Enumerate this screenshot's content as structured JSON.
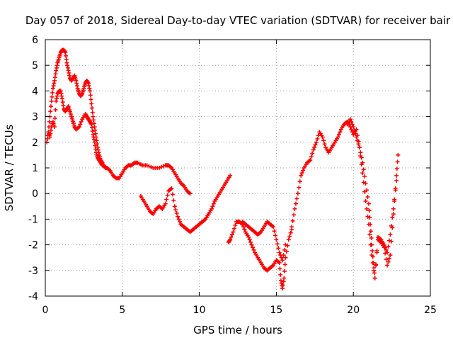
{
  "chart_data": {
    "type": "scatter",
    "title": "Day 057 of 2018, Sidereal Day-to-day VTEC variation (SDTVAR) for receiver bair",
    "xlabel": "GPS time / hours",
    "ylabel": "SDTVAR / TECUs",
    "xlim": [
      0,
      25
    ],
    "ylim": [
      -4,
      6
    ],
    "xticks": [
      0,
      5,
      10,
      15,
      20,
      25
    ],
    "yticks": [
      -4,
      -3,
      -2,
      -1,
      0,
      1,
      2,
      3,
      4,
      5,
      6
    ],
    "grid": true,
    "marker": "+",
    "color": "#ff0000",
    "series": [
      {
        "name": "series-1",
        "x": [
          0.2,
          0.3,
          0.4,
          0.5,
          0.6,
          0.7,
          0.8,
          0.9,
          1.0,
          1.1,
          1.2,
          1.3,
          1.4,
          1.5,
          1.6,
          1.7,
          1.8,
          1.9,
          2.0,
          2.2,
          2.4,
          2.6,
          2.7,
          2.8,
          2.9,
          3.0,
          3.1,
          3.2,
          3.3,
          3.4,
          3.5,
          3.6,
          3.7,
          3.8,
          3.9,
          4.0,
          4.2,
          4.4,
          4.6,
          4.8,
          5.0,
          5.2,
          5.4,
          5.6,
          5.8,
          6.0,
          6.3,
          6.6,
          7.0,
          7.4,
          7.8,
          8.0,
          8.2,
          8.4,
          8.6,
          8.8,
          9.0,
          9.2,
          9.4
        ],
        "y": [
          2.4,
          2.2,
          2.6,
          2.8,
          2.6,
          3.6,
          3.9,
          4.0,
          4.0,
          3.7,
          3.3,
          3.2,
          3.3,
          3.4,
          3.2,
          3.0,
          2.8,
          2.6,
          2.5,
          2.6,
          2.9,
          3.1,
          3.0,
          2.9,
          2.8,
          2.7,
          2.3,
          2.0,
          1.6,
          1.4,
          1.3,
          1.2,
          1.1,
          1.1,
          1.0,
          1.0,
          0.9,
          0.7,
          0.6,
          0.6,
          0.8,
          1.0,
          1.1,
          1.1,
          1.2,
          1.2,
          1.1,
          1.1,
          1.0,
          1.0,
          1.1,
          1.1,
          1.0,
          0.8,
          0.6,
          0.4,
          0.3,
          0.1,
          0.0
        ]
      },
      {
        "name": "series-2",
        "x": [
          0.1,
          0.2,
          0.3,
          0.4,
          0.5,
          0.6,
          0.7,
          0.8,
          0.9,
          1.0,
          1.1,
          1.2,
          1.3,
          1.4,
          1.5,
          1.6,
          1.7,
          1.8,
          1.9,
          2.0,
          2.1,
          2.2,
          2.3,
          2.4,
          2.5,
          2.6,
          2.7,
          2.8,
          2.9,
          3.0,
          3.1,
          3.2,
          3.3,
          3.4,
          3.5,
          3.6,
          3.7
        ],
        "y": [
          2.0,
          2.4,
          3.0,
          3.6,
          4.1,
          4.4,
          4.8,
          5.1,
          5.3,
          5.5,
          5.6,
          5.6,
          5.5,
          5.1,
          4.8,
          4.5,
          4.4,
          4.5,
          4.6,
          4.4,
          4.1,
          3.9,
          3.8,
          3.9,
          4.1,
          4.3,
          4.4,
          4.3,
          4.0,
          3.5,
          3.0,
          2.6,
          2.2,
          1.8,
          1.5,
          1.3,
          1.2
        ]
      },
      {
        "name": "series-3",
        "x": [
          6.2,
          6.4,
          6.6,
          6.8,
          7.0,
          7.2,
          7.4,
          7.6,
          7.8,
          8.0,
          8.2,
          8.4,
          8.6,
          8.8,
          9.0,
          9.2,
          9.4,
          9.6,
          9.8,
          10.0,
          10.2,
          10.4,
          10.6,
          10.8,
          11.0,
          11.2,
          11.4,
          11.6,
          11.8,
          12.0
        ],
        "y": [
          -0.1,
          -0.3,
          -0.5,
          -0.7,
          -0.8,
          -0.6,
          -0.5,
          -0.6,
          -0.4,
          0.1,
          0.2,
          -0.5,
          -0.9,
          -1.2,
          -1.3,
          -1.4,
          -1.5,
          -1.4,
          -1.3,
          -1.2,
          -1.1,
          -1.0,
          -0.8,
          -0.6,
          -0.3,
          -0.1,
          0.1,
          0.3,
          0.5,
          0.7
        ]
      },
      {
        "name": "series-4",
        "x": [
          11.9,
          12.0,
          12.2,
          12.4,
          12.6,
          12.8,
          13.0,
          13.2,
          13.4,
          13.6,
          13.8,
          14.0,
          14.2,
          14.4,
          14.6,
          14.8,
          15.0,
          15.2,
          15.3,
          15.4,
          15.5,
          15.6,
          15.8,
          16.0
        ],
        "y": [
          -1.9,
          -1.8,
          -1.5,
          -1.1,
          -1.1,
          -1.2,
          -1.5,
          -1.7,
          -2.0,
          -2.3,
          -2.5,
          -2.7,
          -2.9,
          -3.0,
          -2.9,
          -2.8,
          -2.6,
          -2.7,
          -3.4,
          -3.7,
          -3.3,
          -2.5,
          -1.8,
          -1.4
        ]
      },
      {
        "name": "series-5",
        "x": [
          12.8,
          13.0,
          13.2,
          13.4,
          13.6,
          13.8,
          14.0,
          14.2,
          14.4,
          14.6,
          14.8,
          15.0,
          15.2,
          15.4,
          15.6
        ],
        "y": [
          -1.1,
          -1.2,
          -1.3,
          -1.4,
          -1.5,
          -1.6,
          -1.5,
          -1.3,
          -1.1,
          -1.2,
          -1.3,
          -1.8,
          -2.3,
          -2.6,
          -2.0
        ]
      },
      {
        "name": "series-6",
        "x": [
          16.0,
          16.2,
          16.4,
          16.6,
          16.8,
          17.0,
          17.2,
          17.4,
          17.6,
          17.8,
          18.0,
          18.2,
          18.4,
          18.6,
          18.8,
          19.0,
          19.2,
          19.4,
          19.6,
          19.8,
          20.0,
          20.2,
          20.4,
          20.6,
          20.8,
          21.0,
          21.2,
          21.4,
          21.6,
          21.8,
          22.0,
          22.2,
          22.4,
          22.6,
          22.8
        ],
        "y": [
          -1.3,
          -0.6,
          0.0,
          0.7,
          1.0,
          1.2,
          1.3,
          1.7,
          2.0,
          2.4,
          2.2,
          1.8,
          1.6,
          1.8,
          2.0,
          2.2,
          2.5,
          2.7,
          2.8,
          2.6,
          2.3,
          2.5,
          1.8,
          0.8,
          -0.3,
          -1.2,
          -2.4,
          -3.3,
          -1.7,
          -1.8,
          -2.0,
          -2.3,
          -1.6,
          -0.6,
          0.5
        ]
      },
      {
        "name": "series-7",
        "x": [
          19.6,
          19.8,
          20.0,
          20.2,
          20.4,
          20.6,
          20.8,
          21.0,
          21.1,
          21.2,
          21.3,
          21.4,
          21.6,
          21.8,
          22.0,
          22.2,
          22.4,
          22.6,
          22.8,
          22.9
        ],
        "y": [
          2.7,
          2.9,
          2.6,
          2.2,
          1.8,
          1.2,
          0.4,
          -0.4,
          -1.2,
          -2.0,
          -2.7,
          -3.3,
          -1.8,
          -1.9,
          -2.1,
          -2.8,
          -2.4,
          -0.8,
          0.7,
          1.5
        ]
      }
    ]
  }
}
